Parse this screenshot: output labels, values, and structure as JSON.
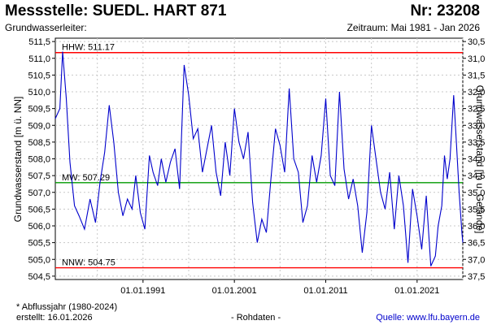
{
  "header": {
    "title": "Messstelle: SUEDL. HART 871",
    "number": "Nr: 23208",
    "aquifer": "Grundwasserleiter:",
    "period": "Zeitraum: Mai 1981 - Jan 2026"
  },
  "footer": {
    "note": "* Abflussjahr (1980-2024)",
    "created": "erstellt:  16.01.2026",
    "raw": "- Rohdaten -",
    "source": "Quelle: www.lfu.bayern.de"
  },
  "colors": {
    "series": "#0000cc",
    "extreme_lines": "#ff0000",
    "mean_line": "#009900",
    "grid": "#c8c8c8"
  },
  "chart_data": {
    "type": "line",
    "ylabel": "Grundwasserstand [m ü. NN]",
    "y2label": "Grundwasserstand [m u. Gelände]",
    "ylim": [
      504.4,
      511.6
    ],
    "y_ticks": [
      "504,5",
      "505,0",
      "505,5",
      "506,0",
      "506,5",
      "507,0",
      "507,5",
      "508,0",
      "508,5",
      "509,0",
      "509,5",
      "510,0",
      "510,5",
      "511,0",
      "511,5"
    ],
    "y2_ticks": [
      "37,5",
      "37,0",
      "36,5",
      "36,0",
      "35,5",
      "35,0",
      "34,5",
      "34,0",
      "33,5",
      "33,0",
      "32,5",
      "32,0",
      "31,5",
      "31,0",
      "30,5"
    ],
    "x_ticks": [
      "01.01.1991",
      "01.01.2001",
      "01.01.2011",
      "01.01.2021"
    ],
    "grid": true,
    "reference_lines": [
      {
        "label": "HHW: 511.17",
        "value": 511.17,
        "color": "#ff0000"
      },
      {
        "label": "MW: 507.29",
        "value": 507.29,
        "color": "#009900"
      },
      {
        "label": "NNW: 504.75",
        "value": 504.75,
        "color": "#ff0000"
      }
    ],
    "series": [
      {
        "x": [
          1981.4,
          1981.9,
          1982.2,
          1982.6,
          1983.0,
          1983.5,
          1984.0,
          1984.6,
          1985.2,
          1985.8,
          1986.3,
          1986.8,
          1987.3,
          1987.8,
          1988.3,
          1988.8,
          1989.3,
          1989.8,
          1990.2,
          1990.7,
          1991.2,
          1991.7,
          1992.1,
          1992.6,
          1993.0,
          1993.5,
          1994.0,
          1994.5,
          1995.0,
          1995.5,
          1996.0,
          1996.5,
          1997.0,
          1997.5,
          1998.0,
          1998.5,
          1999.0,
          1999.5,
          2000.0,
          2000.5,
          2001.0,
          2001.5,
          2002.0,
          2002.5,
          2003.0,
          2003.5,
          2004.0,
          2004.5,
          2005.0,
          2005.5,
          2006.0,
          2006.5,
          2007.0,
          2007.5,
          2008.0,
          2008.5,
          2009.0,
          2009.5,
          2010.0,
          2010.5,
          2011.0,
          2011.5,
          2012.0,
          2012.5,
          2013.0,
          2013.5,
          2014.0,
          2014.5,
          2015.0,
          2015.5,
          2016.0,
          2016.5,
          2017.0,
          2017.5,
          2018.0,
          2018.5,
          2019.0,
          2019.5,
          2020.0,
          2020.5,
          2021.0,
          2021.5,
          2022.0,
          2022.5,
          2023.0,
          2023.3,
          2023.7,
          2024.0,
          2024.3,
          2024.6,
          2025.0,
          2025.3,
          2025.6,
          2025.9,
          2026.0
        ],
        "y": [
          509.2,
          509.5,
          511.2,
          509.8,
          507.9,
          506.6,
          506.3,
          505.9,
          506.8,
          506.1,
          507.3,
          508.2,
          509.6,
          508.5,
          507.0,
          506.3,
          506.8,
          506.5,
          507.5,
          506.4,
          505.9,
          508.1,
          507.6,
          507.2,
          508.0,
          507.3,
          507.9,
          508.3,
          507.1,
          510.8,
          509.9,
          508.6,
          508.9,
          507.6,
          508.3,
          509.0,
          507.6,
          506.9,
          508.5,
          507.5,
          509.5,
          508.5,
          508.0,
          508.8,
          506.7,
          505.5,
          506.2,
          505.8,
          507.4,
          508.9,
          508.4,
          507.6,
          510.1,
          508.0,
          507.6,
          506.1,
          506.6,
          508.1,
          507.3,
          508.1,
          509.8,
          507.5,
          507.2,
          510.0,
          507.7,
          506.8,
          507.4,
          506.6,
          505.2,
          506.4,
          509.0,
          508.0,
          507.0,
          506.5,
          507.6,
          505.9,
          507.5,
          506.6,
          504.9,
          507.1,
          506.3,
          505.3,
          506.9,
          504.8,
          505.1,
          506.0,
          506.6,
          508.1,
          507.4,
          508.0,
          509.9,
          508.5,
          507.0,
          505.8,
          505.5
        ]
      }
    ]
  }
}
